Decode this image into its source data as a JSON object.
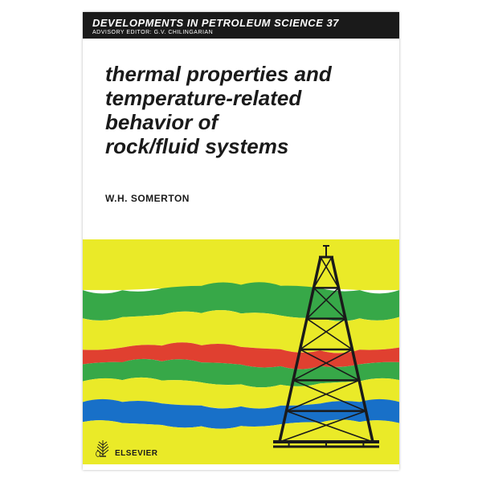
{
  "header": {
    "series": "DEVELOPMENTS IN PETROLEUM SCIENCE 37",
    "advisory": "ADVISORY EDITOR: G.V. CHILINGARIAN"
  },
  "title_lines": [
    "thermal properties and",
    "temperature-related",
    "behavior of",
    "rock/fluid systems"
  ],
  "author": "W.H. SOMERTON",
  "publisher": "ELSEVIER",
  "graphic": {
    "bands": [
      {
        "color": "#eaea28",
        "y_top": 0,
        "y_curve": 60
      },
      {
        "color": "#37a848",
        "y_top": 60,
        "y_curve": 95
      },
      {
        "color": "#eaea28",
        "y_top": 95,
        "y_curve": 135
      },
      {
        "color": "#e04030",
        "y_top": 135,
        "y_curve": 155
      },
      {
        "color": "#37a848",
        "y_top": 155,
        "y_curve": 178
      },
      {
        "color": "#eaea28",
        "y_top": 178,
        "y_curve": 205
      },
      {
        "color": "#1870c8",
        "y_top": 205,
        "y_curve": 230
      },
      {
        "color": "#eaea28",
        "y_top": 230,
        "y_curve": 280
      }
    ],
    "derrick_color": "#1a1a1a",
    "derrick_x": 245,
    "derrick_base_y": 252,
    "derrick_top_y": 22,
    "derrick_width_base": 116,
    "derrick_width_top": 14
  }
}
